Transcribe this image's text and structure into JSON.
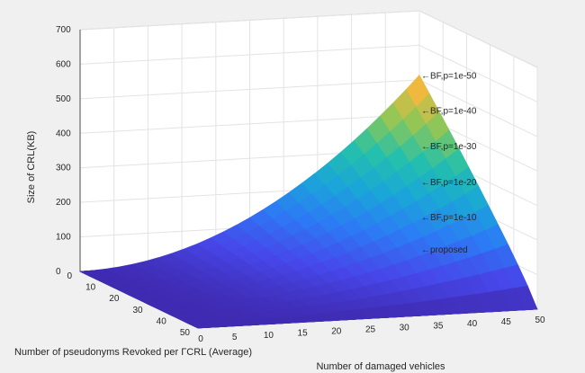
{
  "chart_data": {
    "type": "surface3d",
    "title": "",
    "xlabel": "Number of damaged vehicles",
    "ylabel": "Number of pseudonyms Revoked per ΓCRL (Average)",
    "zlabel": "Size of CRL(KB)",
    "x_ticks": [
      0,
      5,
      10,
      15,
      20,
      25,
      30,
      35,
      40,
      45,
      50
    ],
    "y_ticks": [
      0,
      10,
      20,
      30,
      40,
      50
    ],
    "z_ticks": [
      0,
      100,
      200,
      300,
      400,
      500,
      600,
      700
    ],
    "xlim": [
      0,
      50
    ],
    "ylim": [
      0,
      50
    ],
    "zlim": [
      0,
      700
    ],
    "grid": true,
    "colormap": "parula",
    "colormap_stops": [
      "#3e26a8",
      "#4747ea",
      "#2c7bf5",
      "#1aa6d8",
      "#24c0ab",
      "#8bc758",
      "#f2b93e",
      "#f9fb15"
    ],
    "series": [
      {
        "label": "←BF,p=1e-50",
        "max_z": 514
      },
      {
        "label": "←BF,p=1e-40",
        "max_z": 412
      },
      {
        "label": "←BF,p=1e-30",
        "max_z": 310
      },
      {
        "label": "←BF,p=1e-20",
        "max_z": 206
      },
      {
        "label": "←BF,p=1e-10",
        "max_z": 104
      },
      {
        "label": "←proposed",
        "max_z": 10
      }
    ]
  }
}
